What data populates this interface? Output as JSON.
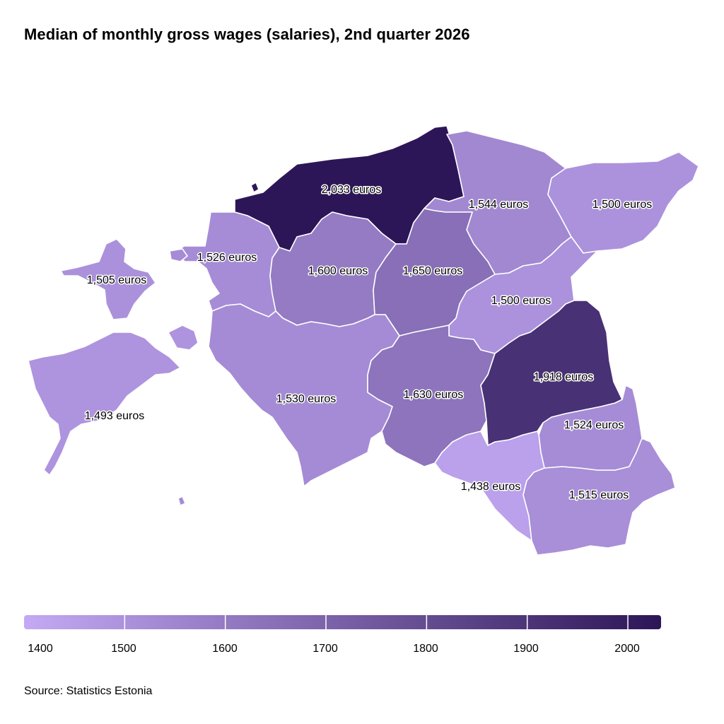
{
  "title": "Median of monthly gross wages (salaries), 2nd quarter 2026",
  "source": "Source: Statistics Estonia",
  "unit_suffix": " euros",
  "colors": {
    "scale_min": "#c4a9f5",
    "scale_max": "#2d1657",
    "border": "#ffffff",
    "label_halo": "#ffffff"
  },
  "legend": {
    "range": [
      1400,
      2033
    ],
    "ticks": [
      "1400",
      "1500",
      "1600",
      "1700",
      "1800",
      "1900",
      "2000"
    ],
    "tick_values": [
      1400,
      1500,
      1600,
      1700,
      1800,
      1900,
      2000
    ]
  },
  "regions": [
    {
      "id": "harju",
      "value": 2033,
      "label": "2,033 euros"
    },
    {
      "id": "laane-viru",
      "value": 1544,
      "label": "1,544 euros"
    },
    {
      "id": "ida-viru",
      "value": 1500,
      "label": "1,500 euros"
    },
    {
      "id": "hiiu",
      "value": 1505,
      "label": "1,505 euros"
    },
    {
      "id": "laane",
      "value": 1526,
      "label": "1,526 euros"
    },
    {
      "id": "rapla",
      "value": 1600,
      "label": "1,600 euros"
    },
    {
      "id": "jarva",
      "value": 1650,
      "label": "1,650 euros"
    },
    {
      "id": "jogeva",
      "value": 1500,
      "label": "1,500 euros"
    },
    {
      "id": "saare",
      "value": 1493,
      "label": "1,493 euros"
    },
    {
      "id": "parnu",
      "value": 1530,
      "label": "1,530 euros"
    },
    {
      "id": "viljandi",
      "value": 1630,
      "label": "1,630 euros"
    },
    {
      "id": "tartu",
      "value": 1918,
      "label": "1,918 euros"
    },
    {
      "id": "polva",
      "value": 1524,
      "label": "1,524 euros"
    },
    {
      "id": "valga",
      "value": 1438,
      "label": "1,438 euros"
    },
    {
      "id": "voru",
      "value": 1515,
      "label": "1,515 euros"
    }
  ]
}
